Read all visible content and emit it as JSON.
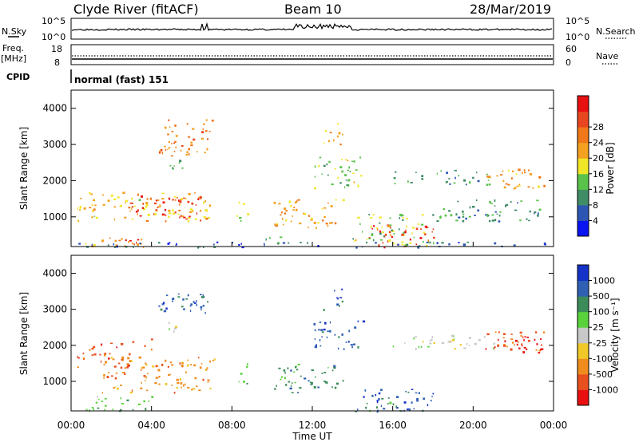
{
  "header": {
    "station": "Clyde River (fitACF)",
    "beam": "Beam 10",
    "date": "28/Mar/2019"
  },
  "top_panels": {
    "nsky_label": "N.Sky",
    "nsearch_label": "N.Search",
    "noise_ticks": [
      "10^5",
      "10^0"
    ],
    "freq_label": "Freq.",
    "freq_unit": "[MHz]",
    "freq_ticks": [
      "18",
      "8"
    ],
    "nave_label": "Nave",
    "nave_ticks": [
      "60",
      "0"
    ],
    "cpid_label": "CPID",
    "cpid_text": "normal (fast) 151"
  },
  "chart_data": [
    {
      "type": "heatmap",
      "title": "Power",
      "ylabel": "Slant Range [km]",
      "xlabel": "",
      "ylim": [
        180,
        4500
      ],
      "y_ticks": [
        "1000",
        "2000",
        "3000",
        "4000"
      ],
      "colorbar": {
        "label": "Power [dB]",
        "ticks": [
          "4",
          "8",
          "12",
          "16",
          "20",
          "24",
          "28"
        ],
        "range": [
          0,
          32
        ],
        "colors": [
          "#0a14f0",
          "#2d55b4",
          "#3f8c66",
          "#5ac24a",
          "#f0e628",
          "#f4a020",
          "#f07818",
          "#e8461e",
          "#e81010"
        ]
      },
      "regions": [
        {
          "t": [
            0.3,
            7.2
          ],
          "r": [
            900,
            1700
          ],
          "v": 18
        },
        {
          "t": [
            2.8,
            6.5
          ],
          "r": [
            900,
            1600
          ],
          "v": 28
        },
        {
          "t": [
            0.5,
            4.0
          ],
          "r": [
            180,
            500
          ],
          "v": 20
        },
        {
          "t": [
            2.5,
            3.5
          ],
          "r": [
            180,
            450
          ],
          "v": 28
        },
        {
          "t": [
            4.2,
            7.0
          ],
          "r": [
            2700,
            3700
          ],
          "v": 22
        },
        {
          "t": [
            4.5,
            5.5
          ],
          "r": [
            2200,
            2600
          ],
          "v": 12
        },
        {
          "t": [
            8.2,
            8.8
          ],
          "r": [
            900,
            1500
          ],
          "v": 16
        },
        {
          "t": [
            9.5,
            10.5
          ],
          "r": [
            180,
            500
          ],
          "v": 10
        },
        {
          "t": [
            10.0,
            13.5
          ],
          "r": [
            700,
            1500
          ],
          "v": 20
        },
        {
          "t": [
            12.0,
            14.5
          ],
          "r": [
            1800,
            2700
          ],
          "v": 14
        },
        {
          "t": [
            12.5,
            13.5
          ],
          "r": [
            3000,
            3600
          ],
          "v": 18
        },
        {
          "t": [
            14.5,
            18.0
          ],
          "r": [
            180,
            800
          ],
          "v": 28
        },
        {
          "t": [
            14.0,
            18.0
          ],
          "r": [
            200,
            1100
          ],
          "v": 14
        },
        {
          "t": [
            16.0,
            21.0
          ],
          "r": [
            1900,
            2300
          ],
          "v": 10
        },
        {
          "t": [
            20.5,
            23.5
          ],
          "r": [
            1800,
            2400
          ],
          "v": 20
        },
        {
          "t": [
            18.0,
            23.5
          ],
          "r": [
            900,
            1500
          ],
          "v": 9
        },
        {
          "t": [
            0.0,
            24.0
          ],
          "r": [
            180,
            320
          ],
          "v": 6
        }
      ]
    },
    {
      "type": "heatmap",
      "title": "Velocity",
      "ylabel": "Slant Range [km]",
      "xlabel": "Time UT",
      "ylim": [
        180,
        4500
      ],
      "y_ticks": [
        "1000",
        "2000",
        "3000",
        "4000"
      ],
      "x_ticks": [
        "00:00",
        "04:00",
        "08:00",
        "12:00",
        "16:00",
        "20:00",
        "00:00"
      ],
      "xlim": [
        0,
        24
      ],
      "colorbar": {
        "label": "Velocity [m s⁻¹]",
        "ticks": [
          "1000",
          "500",
          "100",
          "25",
          "-25",
          "-100",
          "-500",
          "-1000"
        ],
        "colors": [
          "#1432c8",
          "#2f60b4",
          "#3c8c5a",
          "#5ad23c",
          "#c8c8c8",
          "#f0c828",
          "#f08c1e",
          "#e8501e",
          "#e81010"
        ]
      },
      "regions": [
        {
          "t": [
            0.3,
            3.0
          ],
          "r": [
            1400,
            2100
          ],
          "v": 7
        },
        {
          "t": [
            1.5,
            7.2
          ],
          "r": [
            700,
            1700
          ],
          "v": 6
        },
        {
          "t": [
            3.0,
            4.0
          ],
          "r": [
            1900,
            2200
          ],
          "v": 7
        },
        {
          "t": [
            4.2,
            7.0
          ],
          "r": [
            2900,
            3600
          ],
          "v": 1
        },
        {
          "t": [
            4.5,
            5.5
          ],
          "r": [
            2400,
            2700
          ],
          "v": 4
        },
        {
          "t": [
            0.5,
            4.0
          ],
          "r": [
            180,
            600
          ],
          "v": 3
        },
        {
          "t": [
            8.2,
            8.8
          ],
          "r": [
            900,
            1500
          ],
          "v": 3
        },
        {
          "t": [
            10.0,
            13.5
          ],
          "r": [
            700,
            1500
          ],
          "v": 2
        },
        {
          "t": [
            12.0,
            14.5
          ],
          "r": [
            1900,
            2700
          ],
          "v": 1
        },
        {
          "t": [
            12.5,
            13.5
          ],
          "r": [
            3000,
            3600
          ],
          "v": 1
        },
        {
          "t": [
            14.0,
            18.0
          ],
          "r": [
            180,
            800
          ],
          "v": 1
        },
        {
          "t": [
            14.5,
            16.0
          ],
          "r": [
            180,
            450
          ],
          "v": 2
        },
        {
          "t": [
            16.0,
            21.0
          ],
          "r": [
            1900,
            2300
          ],
          "v": 4
        },
        {
          "t": [
            20.5,
            23.5
          ],
          "r": [
            1800,
            2400
          ],
          "v": 7
        },
        {
          "t": [
            21.0,
            23.5
          ],
          "r": [
            1900,
            2300
          ],
          "v": 8
        }
      ]
    }
  ]
}
